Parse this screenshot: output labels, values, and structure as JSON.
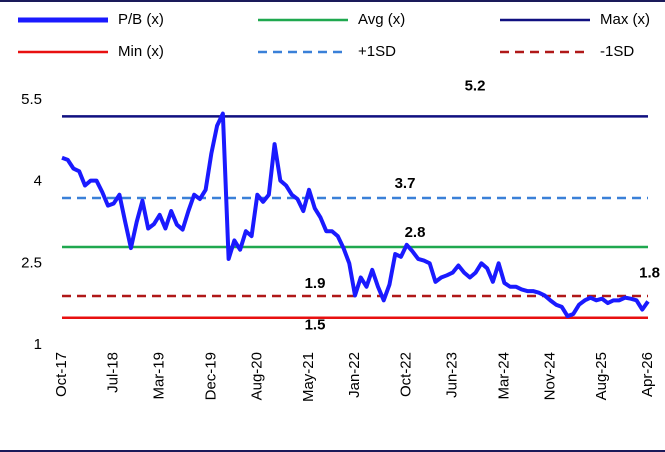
{
  "chart_data": {
    "type": "line",
    "categories": [
      "Oct-17",
      null,
      null,
      null,
      null,
      null,
      null,
      null,
      null,
      "Jul-18",
      null,
      null,
      null,
      null,
      null,
      null,
      null,
      "Mar-19",
      null,
      null,
      null,
      null,
      null,
      null,
      null,
      null,
      "Dec-19",
      null,
      null,
      null,
      null,
      null,
      null,
      null,
      "Aug-20",
      null,
      null,
      null,
      null,
      null,
      null,
      null,
      null,
      "May-21",
      null,
      null,
      null,
      null,
      null,
      null,
      null,
      "Jan-22",
      null,
      null,
      null,
      null,
      null,
      null,
      null,
      null,
      "Oct-22",
      null,
      null,
      null,
      null,
      null,
      null,
      null,
      "Jun-23",
      null,
      null,
      null,
      null,
      null,
      null,
      null,
      null,
      "Mar-24",
      null,
      null,
      null,
      null,
      null,
      null,
      null,
      "Nov-24",
      null,
      null,
      null,
      null,
      null,
      null,
      null,
      null,
      "Aug-25",
      null,
      null,
      null,
      null,
      null,
      null,
      null,
      "Apr-26"
    ],
    "series": [
      {
        "name": "P/B (x)",
        "color": "#1a1aff",
        "values": [
          4.44,
          4.4,
          4.24,
          4.19,
          3.93,
          4.02,
          4.02,
          3.81,
          3.56,
          3.6,
          3.76,
          3.26,
          2.78,
          3.26,
          3.65,
          3.14,
          3.22,
          3.39,
          3.14,
          3.46,
          3.21,
          3.12,
          3.46,
          3.76,
          3.68,
          3.85,
          4.52,
          5.03,
          5.25,
          2.58,
          2.92,
          2.75,
          3.09,
          3.0,
          3.76,
          3.63,
          3.76,
          4.69,
          4.02,
          3.93,
          3.76,
          3.68,
          3.46,
          3.85,
          3.51,
          3.34,
          3.09,
          3.09,
          3.0,
          2.78,
          2.5,
          1.91,
          2.24,
          2.07,
          2.38,
          2.07,
          1.82,
          2.11,
          2.67,
          2.62,
          2.84,
          2.72,
          2.58,
          2.55,
          2.5,
          2.16,
          2.24,
          2.28,
          2.33,
          2.46,
          2.33,
          2.24,
          2.33,
          2.5,
          2.41,
          2.16,
          2.5,
          2.14,
          2.07,
          2.07,
          2.02,
          1.99,
          1.99,
          1.96,
          1.91,
          1.82,
          1.74,
          1.7,
          1.53,
          1.57,
          1.74,
          1.82,
          1.87,
          1.82,
          1.85,
          1.77,
          1.82,
          1.82,
          1.87,
          1.85,
          1.82,
          1.65,
          1.8
        ]
      },
      {
        "name": "Avg (x)",
        "color": "#1fa84f",
        "value": 2.8
      },
      {
        "name": "Max (x)",
        "color": "#101080",
        "value": 5.2
      },
      {
        "name": "Min (x)",
        "color": "#e81010",
        "value": 1.5
      },
      {
        "name": "+1SD",
        "color": "#3a80d8",
        "value": 3.7,
        "dashed": true
      },
      {
        "name": "-1SD",
        "color": "#b01818",
        "value": 1.9,
        "dashed": true
      }
    ],
    "ylim": [
      1,
      5.5
    ],
    "yticks": [
      1,
      2.5,
      4,
      5.5
    ],
    "grid": false
  }
}
